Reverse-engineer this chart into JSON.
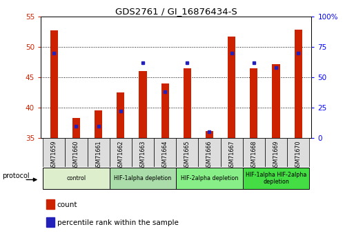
{
  "title": "GDS2761 / GI_16876434-S",
  "samples": [
    "GSM71659",
    "GSM71660",
    "GSM71661",
    "GSM71662",
    "GSM71663",
    "GSM71664",
    "GSM71665",
    "GSM71666",
    "GSM71667",
    "GSM71668",
    "GSM71669",
    "GSM71670"
  ],
  "count_values": [
    52.8,
    38.3,
    39.6,
    42.5,
    46.0,
    44.0,
    46.5,
    36.2,
    51.7,
    46.5,
    47.2,
    52.9
  ],
  "percentile_values": [
    70,
    10,
    10,
    22,
    62,
    38,
    62,
    5,
    70,
    62,
    58,
    70
  ],
  "bar_bottom": 35,
  "ylim_left": [
    35,
    55
  ],
  "ylim_right": [
    0,
    100
  ],
  "yticks_left": [
    35,
    40,
    45,
    50,
    55
  ],
  "yticks_right": [
    0,
    25,
    50,
    75,
    100
  ],
  "ytick_labels_right": [
    "0",
    "25",
    "50",
    "75",
    "100%"
  ],
  "bar_color": "#CC2200",
  "dot_color": "#2222BB",
  "protocol_groups": [
    {
      "label": "control",
      "start": 0,
      "end": 2,
      "color": "#DDEECC"
    },
    {
      "label": "HIF-1alpha depletion",
      "start": 3,
      "end": 5,
      "color": "#AADDAA"
    },
    {
      "label": "HIF-2alpha depletion",
      "start": 6,
      "end": 8,
      "color": "#88EE88"
    },
    {
      "label": "HIF-1alpha HIF-2alpha\ndepletion",
      "start": 9,
      "end": 11,
      "color": "#44DD44"
    }
  ],
  "legend_count_label": "count",
  "legend_percentile_label": "percentile rank within the sample",
  "figsize": [
    5.13,
    3.45
  ],
  "dpi": 100
}
